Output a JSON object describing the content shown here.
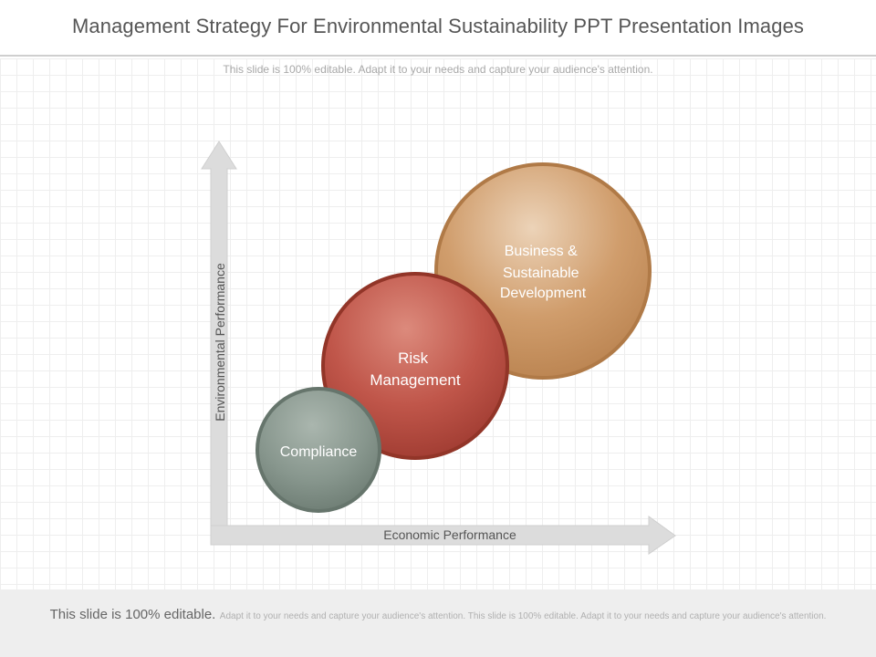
{
  "slide": {
    "title": "Management Strategy For Environmental Sustainability PPT Presentation Images",
    "subtitle": "This slide is 100% editable. Adapt it to your needs and capture your audience's attention."
  },
  "diagram": {
    "y_axis_label": "Environmental Performance",
    "x_axis_label": "Economic Performance",
    "circles": [
      {
        "lines": [
          "Compliance"
        ],
        "color": "#7f8f86"
      },
      {
        "lines": [
          "Risk",
          "Management"
        ],
        "color": "#b84a3c"
      },
      {
        "lines": [
          "Business &",
          "Sustainable",
          "Development"
        ],
        "color": "#c98f5a"
      }
    ]
  },
  "footer": {
    "lead": "This slide is 100% editable.",
    "body": "Adapt it to your needs and capture your audience's attention. This slide is 100% editable. Adapt it to your needs and capture your audience's attention."
  }
}
